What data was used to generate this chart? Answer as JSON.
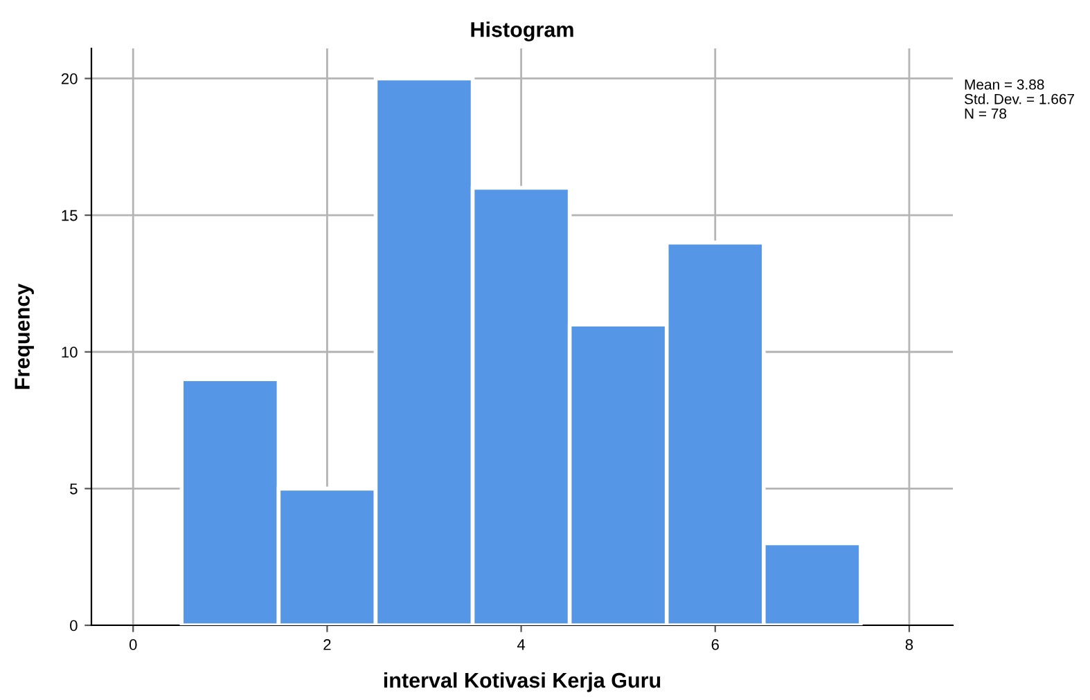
{
  "chart_data": {
    "type": "histogram",
    "title": "Histogram",
    "xlabel": "interval Kotivasi Kerja Guru",
    "ylabel": "Frequency",
    "bins": [
      0.5,
      1.5,
      2.5,
      3.5,
      4.5,
      5.5,
      6.5,
      7.5
    ],
    "values": [
      9,
      5,
      20,
      16,
      11,
      14,
      3
    ],
    "color": "#5596e6",
    "xlim": [
      -0.43,
      8.45
    ],
    "xticks": [
      0,
      2,
      4,
      6,
      8
    ],
    "ylim": [
      0,
      21.1
    ],
    "yticks": [
      0,
      5,
      10,
      15,
      20
    ],
    "grid": true,
    "annotations": [
      "Mean = 3.88",
      "Std. Dev. = 1.667",
      "N = 78"
    ]
  }
}
